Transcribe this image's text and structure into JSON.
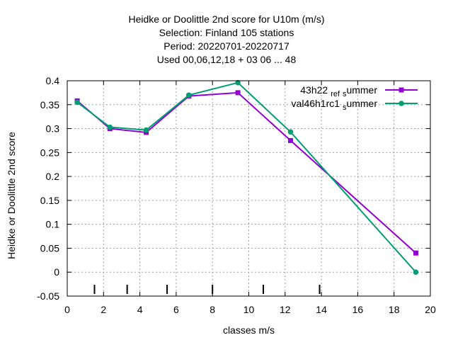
{
  "chart_data": {
    "type": "line",
    "title_lines": [
      "Heidke or Doolittle 2nd score  for U10m (m/s)",
      "Selection: Finland    105 stations",
      "Period: 20220701-20220717",
      "Used  00,06,12,18  + 03 06 ... 48"
    ],
    "xlabel": "classes m/s",
    "ylabel": "Heidke or Doolittle 2nd score",
    "xlim": [
      0,
      20
    ],
    "ylim": [
      -0.05,
      0.4
    ],
    "xticks": [
      "0",
      "2",
      "4",
      "6",
      "8",
      "10",
      "12",
      "14",
      "16",
      "18",
      "20"
    ],
    "yticks": [
      "-0.05",
      "0",
      "0.05",
      "0.1",
      "0.15",
      "0.2",
      "0.25",
      "0.3",
      "0.35",
      "0.4"
    ],
    "grid": true,
    "legend_position": "top-right",
    "series": [
      {
        "name": "43h22",
        "sub": "ref",
        "rest_sub": "s",
        "rest": "ummer",
        "color": "#9400d3",
        "marker": "square",
        "x": [
          0.55,
          2.35,
          4.35,
          6.7,
          9.4,
          12.3,
          19.2
        ],
        "y": [
          0.358,
          0.3,
          0.292,
          0.368,
          0.375,
          0.275,
          0.04
        ]
      },
      {
        "name": "val46h1rc1",
        "sub": "",
        "rest_sub": "s",
        "rest": "ummer",
        "color": "#009e73",
        "marker": "circle",
        "x": [
          0.55,
          2.35,
          4.35,
          6.7,
          9.4,
          12.3,
          19.2
        ],
        "y": [
          0.355,
          0.303,
          0.297,
          0.37,
          0.396,
          0.293,
          0.0
        ]
      }
    ],
    "class_markers_x": [
      1.5,
      3.3,
      5.5,
      8.0,
      10.8,
      13.9
    ]
  }
}
